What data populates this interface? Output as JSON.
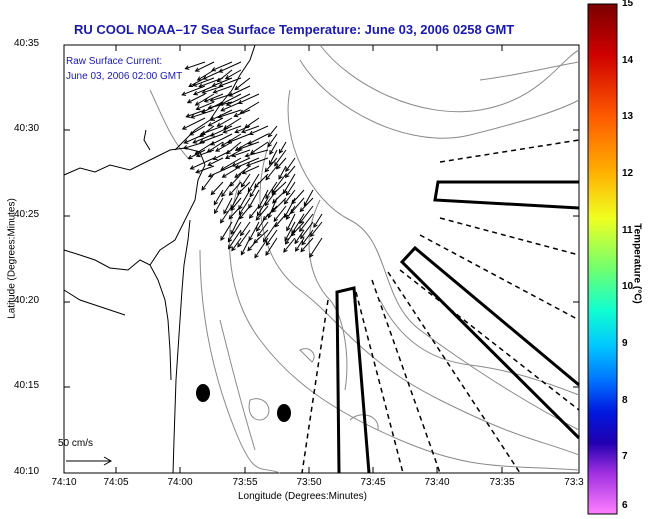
{
  "title": "RU COOL  NOAA–17  Sea Surface Temperature:  June 03, 2006 0258 GMT",
  "annotation": {
    "line1": "Raw Surface Current:",
    "line2": "June 03, 2006 02:00 GMT"
  },
  "scale_label": "50 cm/s",
  "x_axis": {
    "title": "Longitude (Degrees:Minutes)",
    "ticks": [
      "74:10",
      "74:05",
      "74:00",
      "73:55",
      "73:50",
      "73:45",
      "73:40",
      "73:35",
      "73:3"
    ]
  },
  "y_axis": {
    "title": "Latitude (Degrees:Minutes)",
    "ticks": [
      "40:35",
      "40:30",
      "40:25",
      "40:20",
      "40:15",
      "40:10"
    ]
  },
  "colorbar": {
    "title": "Temperature (°C)",
    "ticks": [
      "15",
      "14",
      "13",
      "12",
      "11",
      "10",
      "9",
      "8",
      "7",
      "6"
    ],
    "colors": [
      "#7a0000",
      "#c80000",
      "#ff4000",
      "#ff9000",
      "#ffd000",
      "#e0ff30",
      "#80ff60",
      "#20ffb0",
      "#00e0ff",
      "#0090ff",
      "#0030ff",
      "#0000c0",
      "#5010c0",
      "#a020d0",
      "#ff40e0",
      "#ff90ff"
    ]
  },
  "colors": {
    "title": "#1a1aa8",
    "coastline": "#000000",
    "contour": "#888888",
    "land": "#ffffff"
  }
}
